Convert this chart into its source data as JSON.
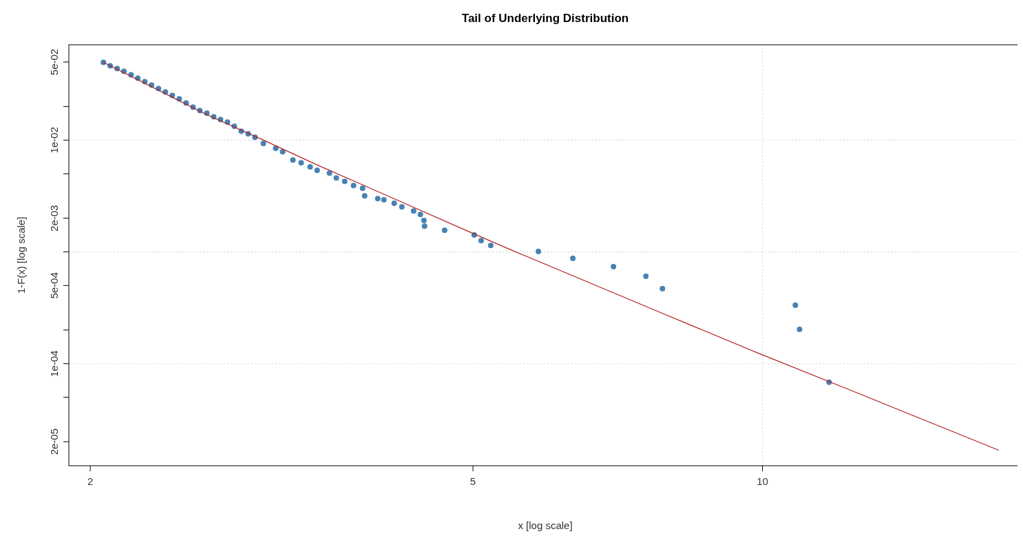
{
  "chart_data": {
    "type": "scatter",
    "title": "Tail of Underlying Distribution",
    "xlabel": "x [log scale]",
    "ylabel": "1-F(x) [log scale]",
    "log": "xy",
    "xlim": [
      1.9,
      18.6
    ],
    "ylim": [
      1.22e-05,
      0.0713
    ],
    "xticks": [
      2,
      5,
      10
    ],
    "yticks": [
      {
        "value": 2e-05,
        "label": "2e-05"
      },
      {
        "value": 5e-05,
        "label": null
      },
      {
        "value": 0.0001,
        "label": "1e-04"
      },
      {
        "value": 0.0002,
        "label": null
      },
      {
        "value": 0.0005,
        "label": "5e-04"
      },
      {
        "value": 0.001,
        "label": null
      },
      {
        "value": 0.002,
        "label": "2e-03"
      },
      {
        "value": 0.005,
        "label": null
      },
      {
        "value": 0.01,
        "label": "1e-02"
      },
      {
        "value": 0.02,
        "label": null
      },
      {
        "value": 0.05,
        "label": "5e-02"
      }
    ],
    "grid": false,
    "ref_lines": [
      {
        "axis": "x",
        "value": 10,
        "color": "#d3d3d3",
        "line_style": "dotted"
      },
      {
        "axis": "y",
        "value": 0.01,
        "color": "#d3d3d3",
        "line_style": "dotted"
      },
      {
        "axis": "y",
        "value": 0.001,
        "color": "#d3d3d3",
        "line_style": "dotted"
      },
      {
        "axis": "y",
        "value": 0.0001,
        "color": "#d3d3d3",
        "line_style": "dotted"
      }
    ],
    "series": [
      {
        "color": "#4682b4",
        "marker": "circle",
        "x": [
          2.064,
          2.098,
          2.133,
          2.168,
          2.205,
          2.241,
          2.279,
          2.316,
          2.355,
          2.394,
          2.434,
          2.475,
          2.516,
          2.558,
          2.6,
          2.644,
          2.688,
          2.732,
          2.778,
          2.824,
          2.871,
          2.919,
          2.967,
          3.027,
          3.118,
          3.17,
          3.249,
          3.314,
          3.386,
          3.443,
          3.546,
          3.605,
          3.678,
          3.757,
          3.839,
          3.858,
          3.981,
          4.04,
          4.141,
          4.218,
          4.338,
          4.409,
          4.446,
          4.453,
          4.672,
          5.015,
          5.099,
          5.218,
          5.848,
          6.351,
          7.0,
          7.565,
          7.871,
          10.82,
          10.93,
          11.73
        ],
        "values": [
          0.0496,
          0.0462,
          0.0437,
          0.0413,
          0.0384,
          0.0358,
          0.0334,
          0.0311,
          0.0289,
          0.027,
          0.0251,
          0.0234,
          0.0215,
          0.0197,
          0.0184,
          0.0174,
          0.0162,
          0.0153,
          0.0145,
          0.0133,
          0.012,
          0.0114,
          0.0106,
          0.00932,
          0.00844,
          0.00786,
          0.00663,
          0.00627,
          0.00575,
          0.00536,
          0.00507,
          0.00459,
          0.00427,
          0.00393,
          0.00371,
          0.00317,
          0.003,
          0.00292,
          0.00272,
          0.00253,
          0.00232,
          0.00216,
          0.00191,
          0.0017,
          0.00156,
          0.00142,
          0.00126,
          0.00114,
          0.00101,
          0.000874,
          0.000737,
          0.000605,
          0.000469,
          0.000333,
          0.000203,
          6.82e-05
        ]
      },
      {
        "type": "line",
        "color": "#b22222",
        "line_style": "solid",
        "x": [
          2.064,
          2.644,
          3.017,
          3.443,
          4.06,
          4.95,
          5.465,
          7.845,
          9.901,
          12.47,
          17.61
        ],
        "values": [
          0.0496,
          0.01689,
          0.01014,
          0.006,
          0.00322,
          0.00152,
          0.00105,
          0.000285,
          0.000124,
          5.59e-05,
          1.68e-05
        ]
      }
    ]
  }
}
